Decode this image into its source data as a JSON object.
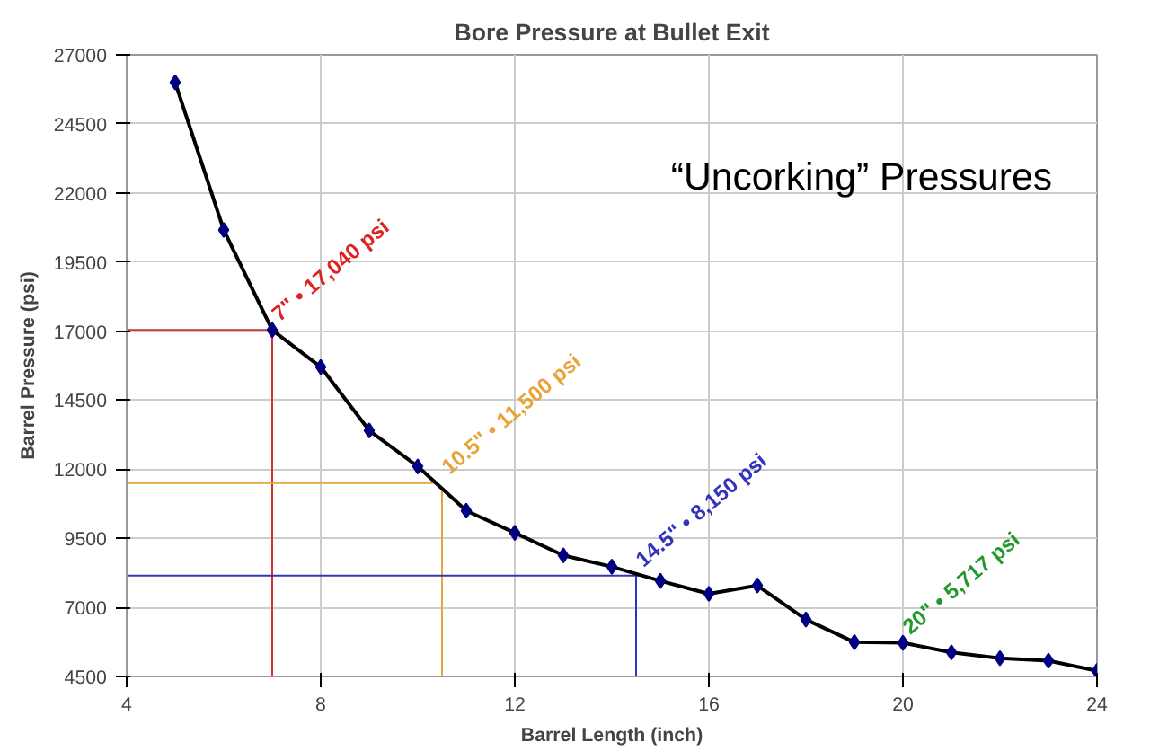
{
  "chart_data": {
    "type": "line",
    "title": "Bore Pressure at Bullet Exit",
    "xlabel": "Barrel Length (inch)",
    "ylabel": "Barrel Pressure (psi)",
    "x": [
      5,
      6,
      7,
      8,
      9,
      10,
      11,
      12,
      13,
      14,
      15,
      16,
      17,
      18,
      19,
      20,
      21,
      22,
      23,
      24
    ],
    "series": [
      {
        "color": "#000000",
        "values": [
          26000,
          20660,
          17040,
          15700,
          13400,
          12100,
          10500,
          9700,
          8880,
          8470,
          7960,
          7490,
          7790,
          6560,
          5740,
          5717,
          5370,
          5160,
          5070,
          4700
        ]
      }
    ],
    "marker": "diamond",
    "line_style": "solid",
    "grid": true,
    "xlim": [
      4,
      24
    ],
    "xticks": [
      4,
      8,
      12,
      16,
      20,
      24
    ],
    "ylim": [
      4500,
      27000
    ],
    "yticks": [
      4500,
      7000,
      9500,
      12000,
      14500,
      17000,
      19500,
      22000,
      24500,
      27000
    ],
    "ref_lines": [
      {
        "axis": "x",
        "value": 7,
        "color": "#cc3333"
      },
      {
        "axis": "y",
        "value": 17040,
        "color": "#cc3333"
      },
      {
        "axis": "x",
        "value": 10.5,
        "color": "#e8a33c"
      },
      {
        "axis": "y",
        "value": 11500,
        "color": "#e8a33c"
      },
      {
        "axis": "x",
        "value": 14.5,
        "color": "#3333bb"
      },
      {
        "axis": "y",
        "value": 8150,
        "color": "#3333bb"
      }
    ],
    "annotations": [
      {
        "text": "7\" • 17,040 psi",
        "x": 7,
        "y": 17040
      },
      {
        "text": "10.5\" • 11,500 psi",
        "x": 10.5,
        "y": 11500
      },
      {
        "text": "14.5\" • 8,150 psi",
        "x": 14.5,
        "y": 8150
      },
      {
        "text": "20\" • 5,717 psi",
        "x": 20,
        "y": 5717
      },
      "“Uncorking” Pressures"
    ]
  }
}
